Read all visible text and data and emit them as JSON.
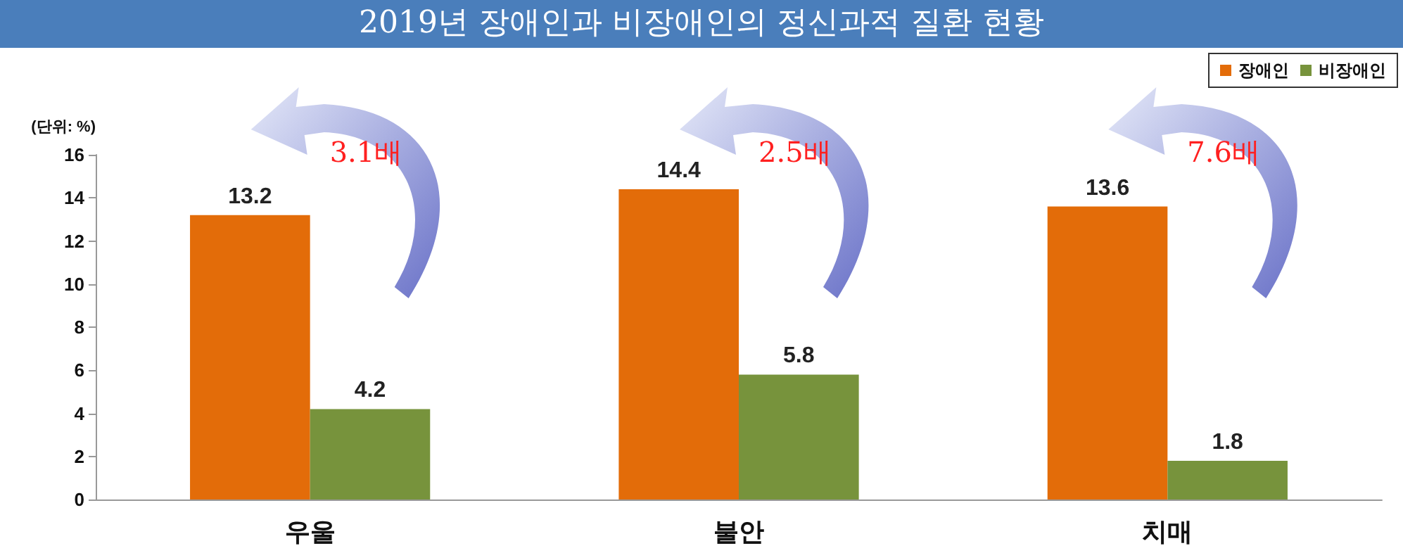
{
  "chart_data": {
    "type": "bar",
    "title": "2019년 장애인과 비장애인의 정신과적 질환 현황",
    "ylabel": "(단위: %)",
    "categories": [
      "우울",
      "불안",
      "치매"
    ],
    "series": [
      {
        "name": "장애인",
        "color": "#e36c09",
        "values": [
          13.2,
          14.4,
          13.6
        ]
      },
      {
        "name": "비장애인",
        "color": "#77933c",
        "values": [
          4.2,
          5.8,
          1.8
        ]
      }
    ],
    "ylim": [
      0,
      16
    ],
    "yticks": [
      0,
      2,
      4,
      6,
      8,
      10,
      12,
      14,
      16
    ],
    "grid": false,
    "legend": "top right",
    "data_labels": true,
    "annotations": [
      "3.1배",
      "2.5배",
      "7.6배"
    ]
  }
}
